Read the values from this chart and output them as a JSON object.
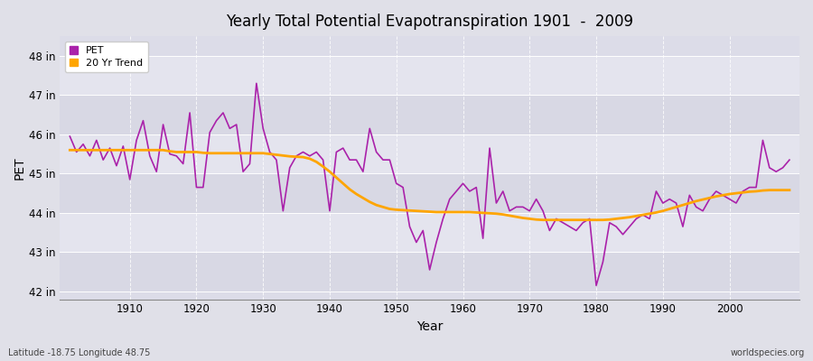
{
  "title": "Yearly Total Potential Evapotranspiration 1901  -  2009",
  "xlabel": "Year",
  "ylabel": "PET",
  "footnote_left": "Latitude -18.75 Longitude 48.75",
  "footnote_right": "worldspecies.org",
  "bg_color": "#e0e0e8",
  "plot_bg_color": "#dcdce8",
  "pet_color": "#aa22aa",
  "trend_color": "#ffa500",
  "ylim": [
    41.8,
    48.5
  ],
  "yticks": [
    42,
    43,
    44,
    45,
    46,
    47,
    48
  ],
  "ytick_labels": [
    "42 in",
    "43 in",
    "44 in",
    "45 in",
    "46 in",
    "47 in",
    "48 in"
  ],
  "band_colors": [
    "#d8d8e4",
    "#e4e4ee"
  ],
  "years": [
    1901,
    1902,
    1903,
    1904,
    1905,
    1906,
    1907,
    1908,
    1909,
    1910,
    1911,
    1912,
    1913,
    1914,
    1915,
    1916,
    1917,
    1918,
    1919,
    1920,
    1921,
    1922,
    1923,
    1924,
    1925,
    1926,
    1927,
    1928,
    1929,
    1930,
    1931,
    1932,
    1933,
    1934,
    1935,
    1936,
    1937,
    1938,
    1939,
    1940,
    1941,
    1942,
    1943,
    1944,
    1945,
    1946,
    1947,
    1948,
    1949,
    1950,
    1951,
    1952,
    1953,
    1954,
    1955,
    1956,
    1957,
    1958,
    1959,
    1960,
    1961,
    1962,
    1963,
    1964,
    1965,
    1966,
    1967,
    1968,
    1969,
    1970,
    1971,
    1972,
    1973,
    1974,
    1975,
    1976,
    1977,
    1978,
    1979,
    1980,
    1981,
    1982,
    1983,
    1984,
    1985,
    1986,
    1987,
    1988,
    1989,
    1990,
    1991,
    1992,
    1993,
    1994,
    1995,
    1996,
    1997,
    1998,
    1999,
    2000,
    2001,
    2002,
    2003,
    2004,
    2005,
    2006,
    2007,
    2008,
    2009
  ],
  "pet_values": [
    45.95,
    45.55,
    45.75,
    45.45,
    45.85,
    45.35,
    45.65,
    45.2,
    45.7,
    44.85,
    45.85,
    46.35,
    45.45,
    45.05,
    46.25,
    45.5,
    45.45,
    45.25,
    46.55,
    44.65,
    44.65,
    46.05,
    46.35,
    46.55,
    46.15,
    46.25,
    45.05,
    45.25,
    47.3,
    46.15,
    45.55,
    45.35,
    44.05,
    45.15,
    45.45,
    45.55,
    45.45,
    45.55,
    45.35,
    44.05,
    45.55,
    45.65,
    45.35,
    45.35,
    45.05,
    46.15,
    45.55,
    45.35,
    45.35,
    44.75,
    44.65,
    43.65,
    43.25,
    43.55,
    42.55,
    43.25,
    43.85,
    44.35,
    44.55,
    44.75,
    44.55,
    44.65,
    43.35,
    45.65,
    44.25,
    44.55,
    44.05,
    44.15,
    44.15,
    44.05,
    44.35,
    44.05,
    43.55,
    43.85,
    43.75,
    43.65,
    43.55,
    43.75,
    43.85,
    42.15,
    42.75,
    43.75,
    43.65,
    43.45,
    43.65,
    43.85,
    43.95,
    43.85,
    44.55,
    44.25,
    44.35,
    44.25,
    43.65,
    44.45,
    44.15,
    44.05,
    44.35,
    44.55,
    44.45,
    44.35,
    44.25,
    44.55,
    44.65,
    44.65,
    45.85,
    45.15,
    45.05,
    45.15,
    45.35
  ],
  "trend_values": [
    45.6,
    45.6,
    45.6,
    45.6,
    45.6,
    45.6,
    45.6,
    45.6,
    45.6,
    45.6,
    45.6,
    45.6,
    45.6,
    45.6,
    45.6,
    45.57,
    45.55,
    45.55,
    45.55,
    45.55,
    45.53,
    45.52,
    45.52,
    45.52,
    45.52,
    45.52,
    45.52,
    45.52,
    45.52,
    45.52,
    45.5,
    45.48,
    45.46,
    45.44,
    45.43,
    45.42,
    45.38,
    45.3,
    45.18,
    45.05,
    44.9,
    44.75,
    44.6,
    44.48,
    44.38,
    44.28,
    44.2,
    44.15,
    44.1,
    44.08,
    44.07,
    44.06,
    44.05,
    44.04,
    44.03,
    44.02,
    44.02,
    44.02,
    44.02,
    44.02,
    44.02,
    44.01,
    44.0,
    43.99,
    43.98,
    43.96,
    43.93,
    43.9,
    43.87,
    43.85,
    43.83,
    43.82,
    43.82,
    43.82,
    43.82,
    43.82,
    43.82,
    43.82,
    43.82,
    43.82,
    43.82,
    43.83,
    43.85,
    43.87,
    43.89,
    43.92,
    43.95,
    43.98,
    44.01,
    44.05,
    44.1,
    44.15,
    44.2,
    44.25,
    44.3,
    44.34,
    44.38,
    44.42,
    44.45,
    44.48,
    44.5,
    44.52,
    44.54,
    44.55,
    44.57,
    44.58,
    44.58,
    44.58,
    44.58
  ]
}
